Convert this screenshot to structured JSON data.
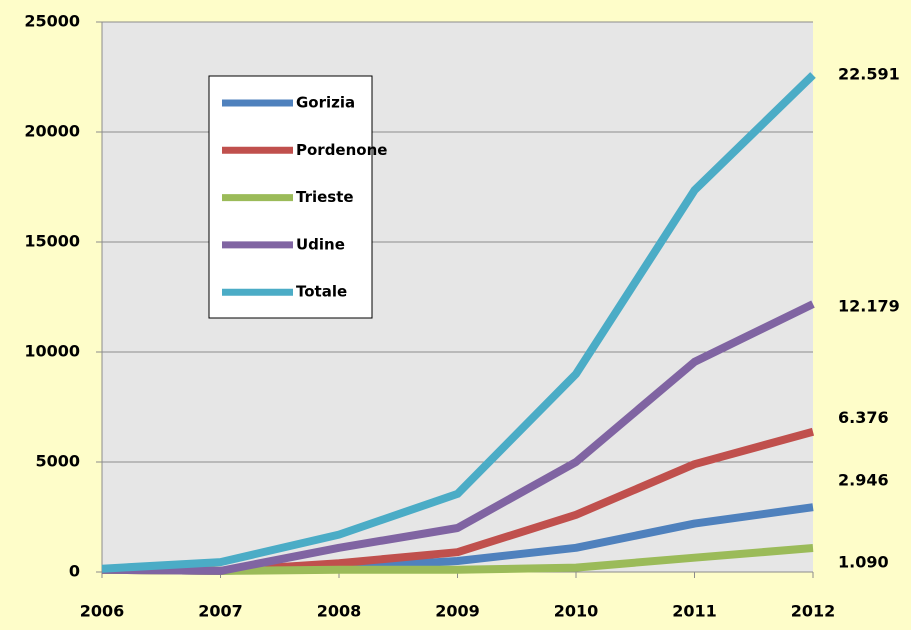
{
  "chart_data": {
    "type": "line",
    "x": [
      2006,
      2007,
      2008,
      2009,
      2010,
      2011,
      2012
    ],
    "xlim": [
      2006,
      2012
    ],
    "xticks": [
      2006,
      2007,
      2008,
      2009,
      2010,
      2011,
      2012
    ],
    "ylim": [
      0,
      25000
    ],
    "yticks": [
      0,
      5000,
      10000,
      15000,
      20000,
      25000
    ],
    "grid": true,
    "legend": "upper left",
    "series": [
      {
        "name": "Gorizia",
        "color": "#4f81bd",
        "values": [
          100,
          50,
          200,
          500,
          1100,
          2200,
          2946
        ],
        "value_labels": [
          null,
          null,
          null,
          null,
          null,
          null,
          "2.946"
        ]
      },
      {
        "name": "Pordenone",
        "color": "#c0504d",
        "values": [
          100,
          50,
          400,
          900,
          2600,
          4900,
          6376
        ],
        "value_labels": [
          null,
          null,
          null,
          null,
          null,
          null,
          "6.376"
        ]
      },
      {
        "name": "Trieste",
        "color": "#9bbb59",
        "values": [
          100,
          50,
          100,
          100,
          200,
          650,
          1090
        ],
        "value_labels": [
          null,
          null,
          null,
          null,
          null,
          null,
          "1.090"
        ]
      },
      {
        "name": "Udine",
        "color": "#8064a2",
        "values": [
          100,
          50,
          1100,
          2000,
          5000,
          9550,
          12179
        ],
        "value_labels": [
          null,
          null,
          null,
          null,
          null,
          null,
          "12.179"
        ]
      },
      {
        "name": "Totale",
        "color": "#4bacc6",
        "values": [
          150,
          450,
          1700,
          3550,
          9000,
          17350,
          22591
        ],
        "value_labels": [
          null,
          null,
          null,
          null,
          null,
          null,
          "22.591"
        ]
      }
    ]
  }
}
